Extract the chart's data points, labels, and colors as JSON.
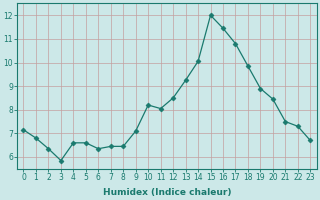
{
  "xlabel": "Humidex (Indice chaleur)",
  "ylabel": "",
  "x": [
    0,
    1,
    2,
    3,
    4,
    5,
    6,
    7,
    8,
    9,
    10,
    11,
    12,
    13,
    14,
    15,
    16,
    17,
    18,
    19,
    20,
    21,
    22,
    23
  ],
  "y": [
    7.15,
    6.8,
    6.35,
    5.85,
    6.6,
    6.6,
    6.35,
    6.45,
    6.45,
    7.1,
    8.2,
    8.05,
    8.5,
    9.25,
    10.05,
    12.0,
    11.45,
    10.8,
    9.85,
    8.9,
    8.45,
    7.5,
    7.3,
    6.7
  ],
  "line_color": "#1a7a6e",
  "bg_color": "#cce8e8",
  "grid_color": "#c4a0a0",
  "ylim": [
    5.5,
    12.5
  ],
  "yticks": [
    6,
    7,
    8,
    9,
    10,
    11,
    12
  ],
  "xticks": [
    0,
    1,
    2,
    3,
    4,
    5,
    6,
    7,
    8,
    9,
    10,
    11,
    12,
    13,
    14,
    15,
    16,
    17,
    18,
    19,
    20,
    21,
    22,
    23
  ],
  "tick_fontsize": 5.5,
  "xlabel_fontsize": 6.5,
  "marker_size": 2.5
}
